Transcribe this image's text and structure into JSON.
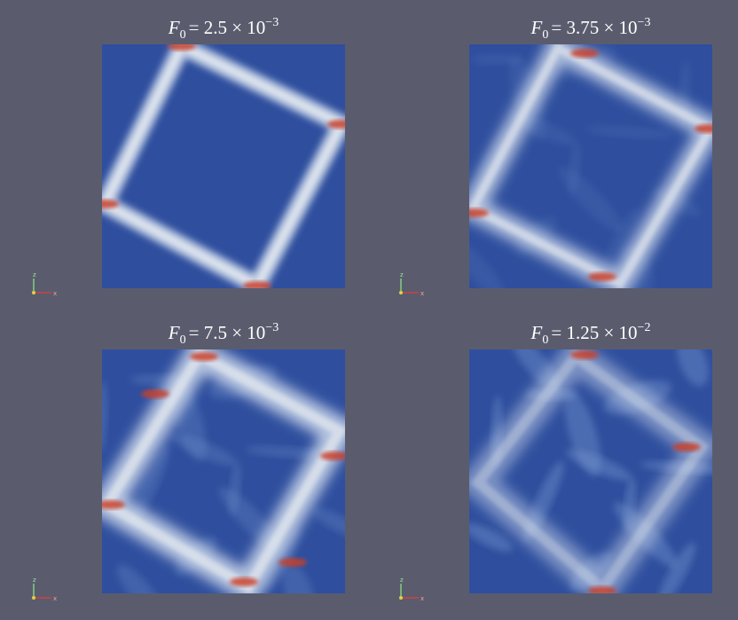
{
  "panels": [
    {
      "title": {
        "symbol": "F",
        "subscript": "0",
        "relation": "= 2.5 × 10",
        "exponent": "−3"
      },
      "axis_labels": {
        "z": "z",
        "x": "x"
      }
    },
    {
      "title": {
        "symbol": "F",
        "subscript": "0",
        "relation": "= 3.75 × 10",
        "exponent": "−3"
      },
      "axis_labels": {
        "z": "z",
        "x": "x"
      }
    },
    {
      "title": {
        "symbol": "F",
        "subscript": "0",
        "relation": "= 7.5 × 10",
        "exponent": "−3"
      },
      "axis_labels": {
        "z": "z",
        "x": "x"
      }
    },
    {
      "title": {
        "symbol": "F",
        "subscript": "0",
        "relation": "= 1.25 × 10",
        "exponent": "−2"
      },
      "axis_labels": {
        "z": "z",
        "x": "x"
      }
    }
  ]
}
